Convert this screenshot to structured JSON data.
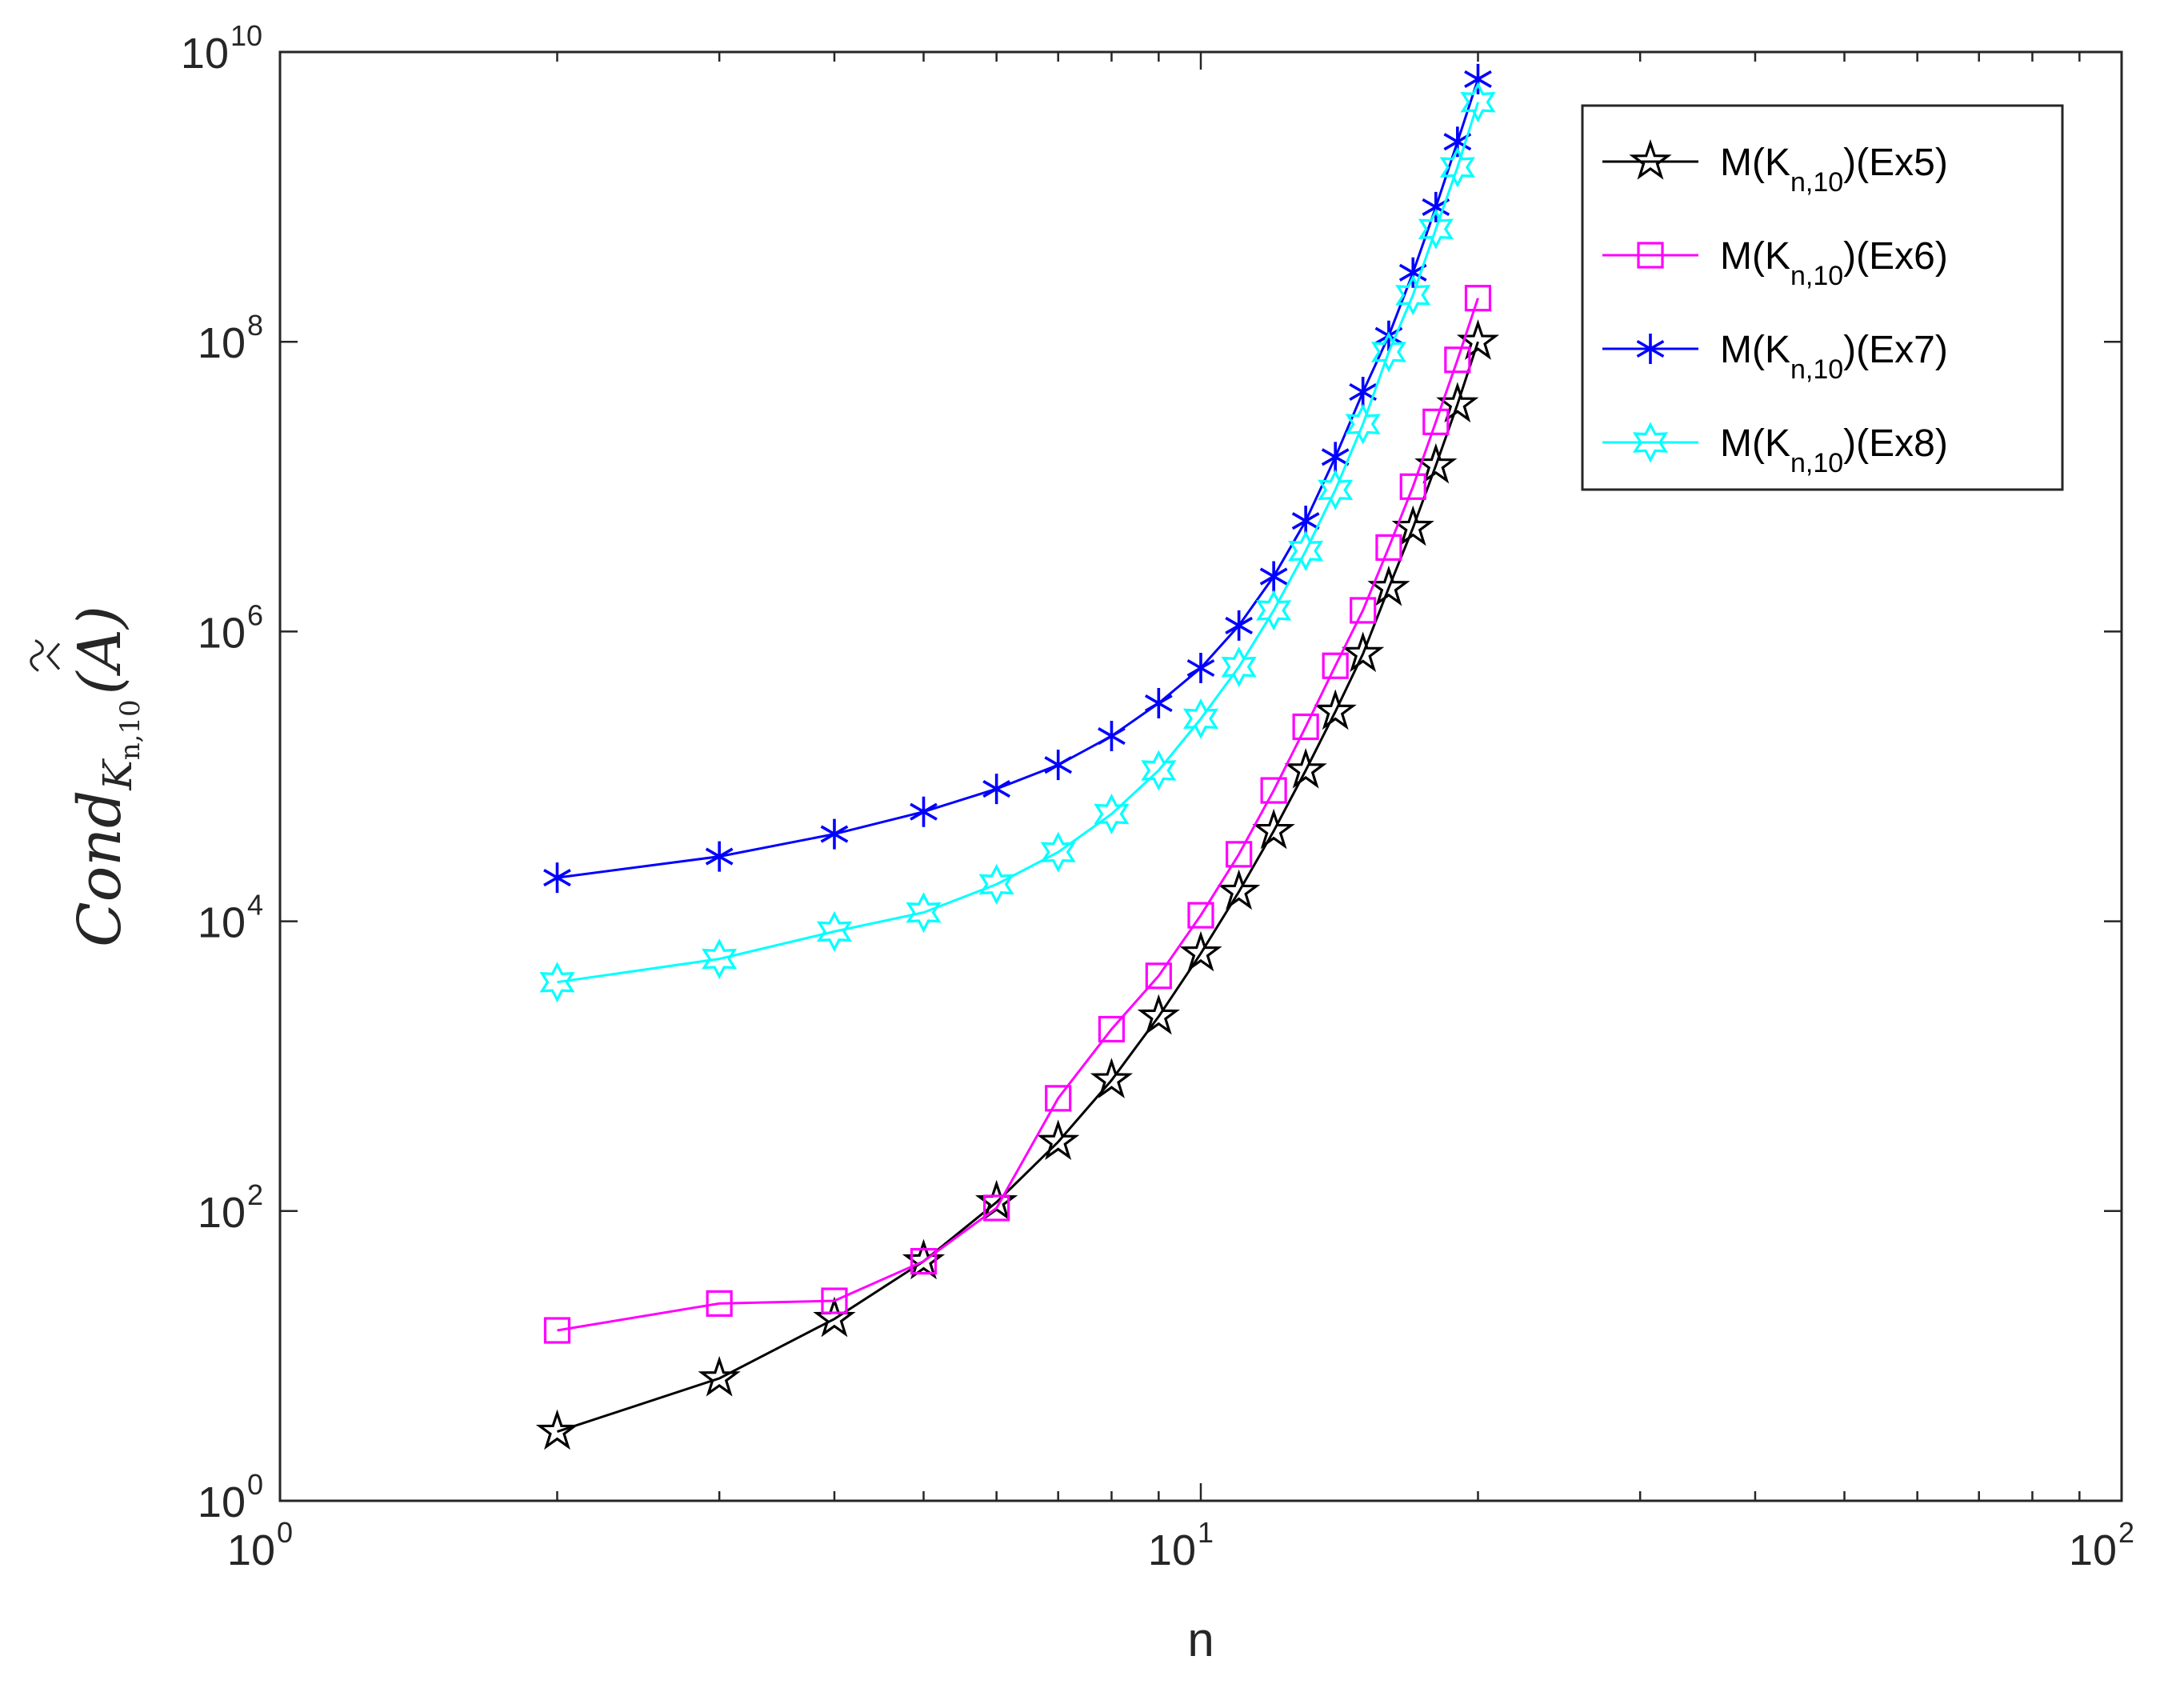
{
  "chart_data": {
    "type": "line",
    "xscale": "log",
    "yscale": "log",
    "xlim": [
      1,
      100
    ],
    "ylim": [
      1,
      10000000000
    ],
    "xlabel": "n",
    "ylabel": {
      "base": "Cond",
      "subscript": "K",
      "subsub": "n,10",
      "argument": "(A)",
      "accent": "widehat + widetilde"
    },
    "x_ticks": [
      {
        "base": "10",
        "exp": "0",
        "value": 1
      },
      {
        "base": "10",
        "exp": "1",
        "value": 10
      },
      {
        "base": "10",
        "exp": "2",
        "value": 100
      }
    ],
    "y_ticks": [
      {
        "base": "10",
        "exp": "0",
        "value": 1
      },
      {
        "base": "10",
        "exp": "2",
        "value": 100
      },
      {
        "base": "10",
        "exp": "4",
        "value": 10000
      },
      {
        "base": "10",
        "exp": "6",
        "value": 1000000
      },
      {
        "base": "10",
        "exp": "8",
        "value": 100000000
      },
      {
        "base": "10",
        "exp": "10",
        "value": 10000000000
      }
    ],
    "legend_position": "top-right",
    "x": [
      2,
      3,
      4,
      5,
      6,
      7,
      8,
      9,
      10,
      11,
      12,
      13,
      14,
      15,
      16,
      17,
      18,
      19,
      20
    ],
    "series": [
      {
        "name_parts": {
          "pre": "M(K",
          "sub": "n,10",
          "post": ")(Ex5)"
        },
        "color": "#000000",
        "marker": "pentagram",
        "values": [
          3,
          7,
          18,
          45,
          115,
          300,
          800,
          2200,
          6000,
          16000,
          42000,
          110000,
          280000,
          700000,
          2000000,
          5200000,
          14000000,
          37000000,
          100000000
        ]
      },
      {
        "name_parts": {
          "pre": "M(K",
          "sub": "n,10",
          "post": ")(Ex6)"
        },
        "color": "#ff00ff",
        "marker": "square",
        "values": [
          15,
          23,
          24,
          45,
          105,
          600,
          1800,
          4200,
          11000,
          29000,
          80000,
          220000,
          580000,
          1400000,
          3800000,
          10000000,
          28000000,
          75000000,
          200000000
        ]
      },
      {
        "name_parts": {
          "pre": "M(K",
          "sub": "n,10",
          "post": ")(Ex7)"
        },
        "color": "#0000ff",
        "marker": "asterisk",
        "values": [
          20000,
          28000,
          40000,
          57000,
          82000,
          120000,
          190000,
          320000,
          560000,
          1100000,
          2400000,
          5800000,
          16000000,
          45000000,
          110000000,
          300000000,
          850000000,
          2400000000,
          6500000000
        ]
      },
      {
        "name_parts": {
          "pre": "M(K",
          "sub": "n,10",
          "post": ")(Ex8)"
        },
        "color": "#00ffff",
        "marker": "hexagram",
        "values": [
          3800,
          5500,
          8500,
          11500,
          18000,
          30000,
          55000,
          110000,
          250000,
          570000,
          1400000,
          3600000,
          9500000,
          27000000,
          85000000,
          210000000,
          600000000,
          1600000000,
          4500000000
        ]
      }
    ]
  }
}
